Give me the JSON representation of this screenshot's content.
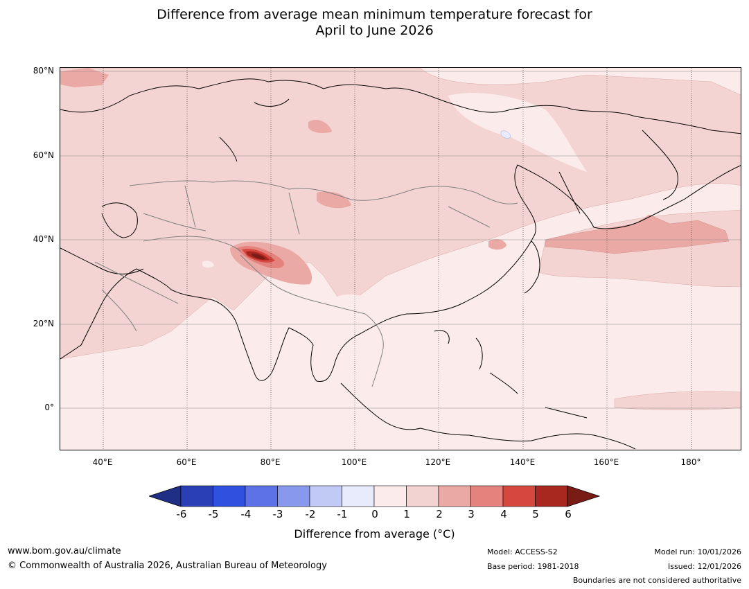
{
  "title": {
    "line1": "Difference from average mean minimum temperature forecast for",
    "line2": "April to June 2026"
  },
  "map": {
    "lat_labels": [
      "80°N",
      "60°N",
      "40°N",
      "20°N",
      "0°"
    ],
    "lon_labels": [
      "40°E",
      "60°E",
      "80°E",
      "100°E",
      "120°E",
      "140°E",
      "160°E",
      "180°"
    ]
  },
  "colorbar": {
    "ticks": [
      "-6",
      "-5",
      "-4",
      "-3",
      "-2",
      "-1",
      "0",
      "1",
      "2",
      "3",
      "4",
      "5",
      "6"
    ],
    "colors": [
      "#1e2f85",
      "#2a3fb5",
      "#3050e0",
      "#5d72e6",
      "#8898ec",
      "#c1c9f5",
      "#e8ebfb",
      "#fbeceb",
      "#f3d3d1",
      "#eba9a6",
      "#e4827d",
      "#d64740",
      "#a8271f",
      "#7a1c16"
    ],
    "label": "Difference from average ($^\\circ$C)",
    "label_display": "Difference from average (°C)"
  },
  "footer": {
    "website": "www.bom.gov.au/climate",
    "copyright": "© Commonwealth of Australia 2026, Australian Bureau of Meteorology",
    "model": "Model: ACCESS-S2",
    "base_period": "Base period: 1981-2018",
    "model_run": "Model run: 10/01/2026",
    "issued": "Issued: 12/01/2026",
    "disclaimer": "Boundaries are not considered authoritative"
  }
}
